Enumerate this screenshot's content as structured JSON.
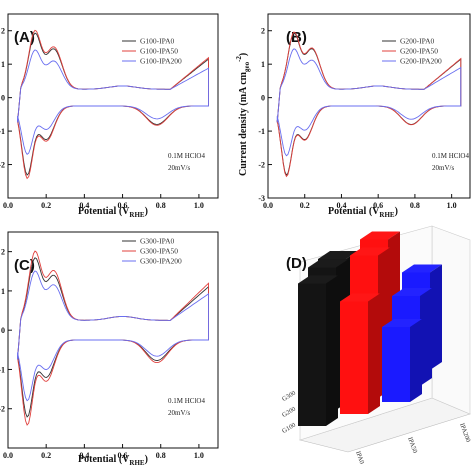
{
  "colors": {
    "black": "#333333",
    "red": "#e0413e",
    "blue": "#6a6ff0",
    "bar_black": "#141414",
    "bar_red": "#ff1010",
    "bar_blue": "#1a1aff"
  },
  "chart_data": [
    {
      "panel": "(A)",
      "type": "line",
      "xlabel": "Potential (V",
      "xlabel_sub": "RHE",
      "ylabel": "",
      "xlim": [
        0.0,
        1.1
      ],
      "ylim": [
        -3,
        2.5
      ],
      "xticks": [
        "0.0",
        "0.2",
        "0.4",
        "0.6",
        "0.8",
        "1.0"
      ],
      "yticks": [
        "-2",
        "-1",
        "0",
        "1",
        "2"
      ],
      "note": [
        "0.1M HClO4",
        "20mV/s"
      ],
      "series": [
        {
          "name": "G100-IPA0",
          "color": "#333333",
          "scale": 1.0
        },
        {
          "name": "G100-IPA50",
          "color": "#e0413e",
          "scale": 1.05
        },
        {
          "name": "G100-IPA200",
          "color": "#6a6ff0",
          "scale": 0.7
        }
      ]
    },
    {
      "panel": "(B)",
      "type": "line",
      "xlabel": "Potential (V",
      "xlabel_sub": "RHE",
      "ylabel": "Current density (mA cm",
      "ylabel_sub": "geo",
      "ylabel_sup": "-2",
      "xlim": [
        0.0,
        1.1
      ],
      "ylim": [
        -3,
        2.5
      ],
      "xticks": [
        "0.0",
        "0.2",
        "0.4",
        "0.6",
        "0.8",
        "1.0"
      ],
      "yticks": [
        "-3",
        "-2",
        "-1",
        "0",
        "1",
        "2"
      ],
      "note": [
        "0.1M HClO4",
        "20mV/s"
      ],
      "series": [
        {
          "name": "G200-IPA0",
          "color": "#333333",
          "scale": 1.0
        },
        {
          "name": "G200-IPA50",
          "color": "#e0413e",
          "scale": 1.02
        },
        {
          "name": "G200-IPA200",
          "color": "#6a6ff0",
          "scale": 0.72
        }
      ]
    },
    {
      "panel": "(C)",
      "type": "line",
      "xlabel": "Potential (V",
      "xlabel_sub": "RHE",
      "ylabel": "",
      "xlim": [
        0.0,
        1.1
      ],
      "ylim": [
        -3,
        2.5
      ],
      "xticks": [
        "0.0",
        "0.2",
        "0.4",
        "0.6",
        "0.8",
        "1.0"
      ],
      "yticks": [
        "-2",
        "-1",
        "0",
        "1",
        "2"
      ],
      "note": [
        "0.1M HClO4",
        "20mV/s"
      ],
      "series": [
        {
          "name": "G300-IPA0",
          "color": "#333333",
          "scale": 0.95
        },
        {
          "name": "G300-IPA50",
          "color": "#e0413e",
          "scale": 1.05
        },
        {
          "name": "G300-IPA200",
          "color": "#6a6ff0",
          "scale": 0.75
        }
      ]
    },
    {
      "panel": "(D)",
      "type": "bar",
      "rows": [
        "G300",
        "G200",
        "G100"
      ],
      "columns": [
        "IPA0",
        "IPA50",
        "IPA200"
      ],
      "values": [
        [
          0.9,
          0.95,
          0.65
        ],
        [
          0.95,
          0.95,
          0.6
        ],
        [
          0.95,
          0.75,
          0.5
        ]
      ]
    }
  ]
}
